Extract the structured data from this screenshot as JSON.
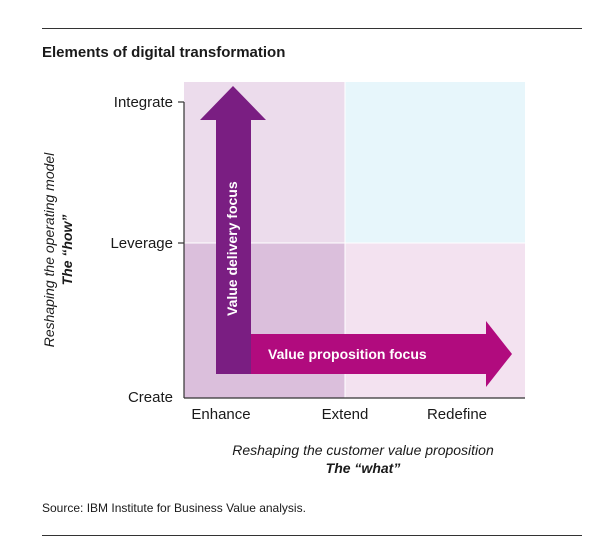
{
  "title": "Elements of digital transformation",
  "y_axis": {
    "levels": [
      "Create",
      "Leverage",
      "Integrate"
    ],
    "title_line1": "Reshaping the operating model",
    "title_line2": "The “how”"
  },
  "x_axis": {
    "levels": [
      "Enhance",
      "Extend",
      "Redefine"
    ],
    "title_line1": "Reshaping the customer value proposition",
    "title_line2": "The “what”"
  },
  "arrows": {
    "vertical_label": "Value delivery focus",
    "horizontal_label": "Value proposition focus"
  },
  "source": "Source: IBM Institute for Business Value analysis.",
  "colors": {
    "top_left": "#ecdcec",
    "top_right": "#e7f6fb",
    "bottom_left": "#dbbfdc",
    "bottom_right": "#f3e2f0",
    "vertical_arrow": "#7a1e82",
    "horizontal_arrow": "#b10b7e"
  }
}
